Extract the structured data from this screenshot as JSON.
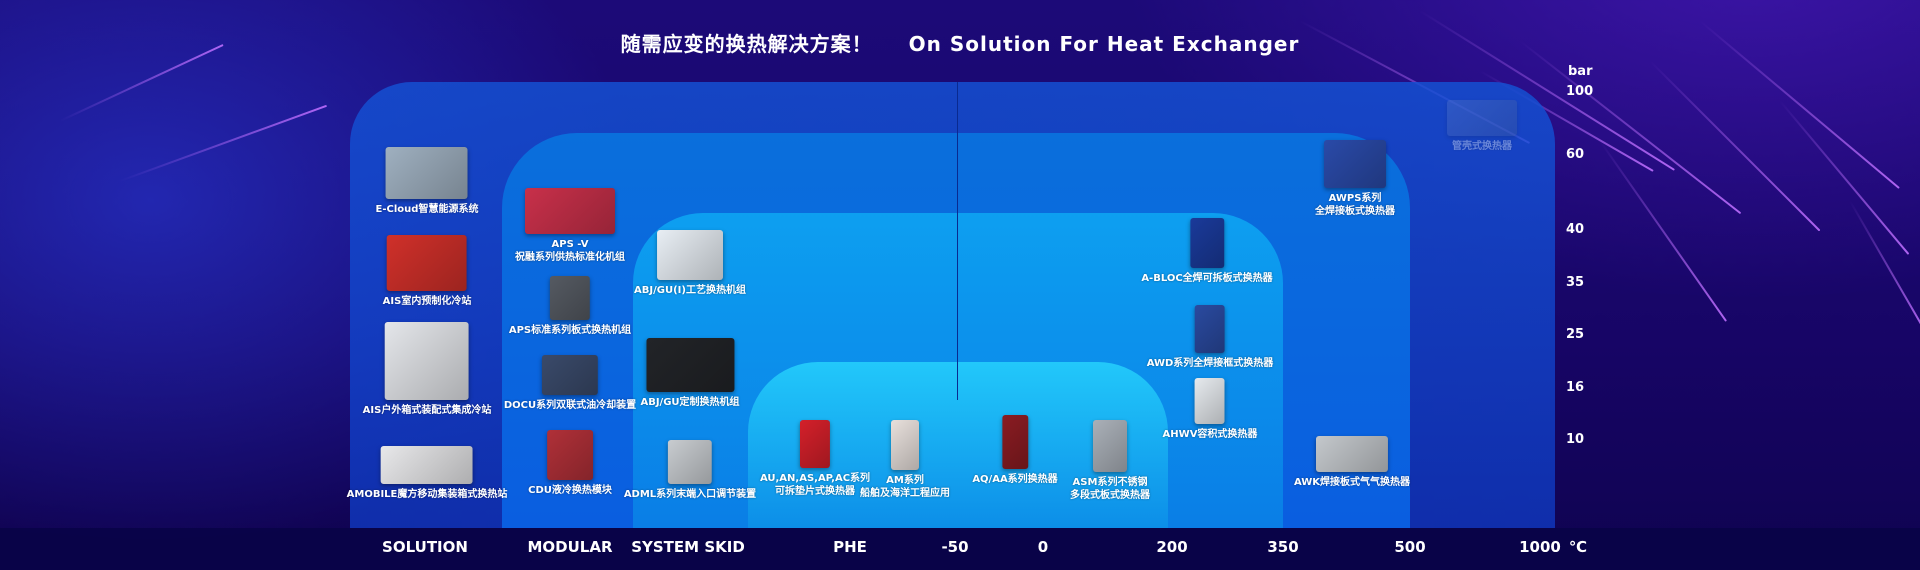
{
  "title": {
    "zh": "随需应变的换热解决方案！",
    "en": "On Solution For Heat Exchanger"
  },
  "axis": {
    "y_unit": "bar",
    "y_ticks": [
      "100",
      "60",
      "40",
      "35",
      "25",
      "16",
      "10"
    ],
    "x_unit": "℃",
    "x_ticks": [
      "-50",
      "0",
      "200",
      "350",
      "500",
      "1000"
    ]
  },
  "categories": [
    "SOLUTION",
    "MODULAR",
    "SYSTEM SKID",
    "PHE"
  ],
  "colors": {
    "background": "#170566",
    "panel_solution": "#1450d2",
    "panel_modular": "#0a6fdc",
    "panel_skid": "#0d9ff0",
    "panel_phe": "#22c8fa"
  },
  "products": [
    {
      "lines": [
        "E-Cloud智慧能源系统"
      ],
      "icon": "control-room-photo",
      "color": "#9fb0c0"
    },
    {
      "lines": [
        "AIS室内预制化冷站"
      ],
      "icon": "piping-diagram",
      "color": "#d0302a"
    },
    {
      "lines": [
        "AIS户外箱式装配式集成冷站"
      ],
      "icon": "outdoor-cabinet",
      "color": "#e4e6ea"
    },
    {
      "lines": [
        "AMOBILE魔方移动集装箱式换热站"
      ],
      "icon": "container",
      "color": "#e8e8ea"
    },
    {
      "lines": [
        "APS -V",
        "祝融系列供热标准化机组"
      ],
      "icon": "heating-skid",
      "color": "#c8304a"
    },
    {
      "lines": [
        "APS标准系列板式换热机组"
      ],
      "icon": "cabinet-unit",
      "color": "#555a62"
    },
    {
      "lines": [
        "DOCU系列双联式油冷却装置"
      ],
      "icon": "oil-cooler",
      "color": "#3a4a6a"
    },
    {
      "lines": [
        "CDU液冷换热模块"
      ],
      "icon": "cdu-cabinet",
      "color": "#b03038"
    },
    {
      "lines": [
        "ABJ/GU(I)工艺换热机组"
      ],
      "icon": "process-skid",
      "color": "#e8eef4"
    },
    {
      "lines": [
        "ABJ/GU定制换热机组"
      ],
      "icon": "custom-skid",
      "color": "#222428"
    },
    {
      "lines": [
        "ADML系列末端入口调节装置"
      ],
      "icon": "control-box",
      "color": "#c8ccd0"
    },
    {
      "lines": [
        "AU,AN,AS,AP,AC系列",
        "可拆垫片式换热器"
      ],
      "icon": "gasket-phe",
      "color": "#d4202a"
    },
    {
      "lines": [
        "AM系列",
        "船舶及海洋工程应用"
      ],
      "icon": "marine-phe",
      "color": "#e8e0dc"
    },
    {
      "lines": [
        "AQ/AA系列换热器"
      ],
      "icon": "frame-phe",
      "color": "#8a1c22"
    },
    {
      "lines": [
        "ASM系列不锈钢",
        "多段式板式换热器"
      ],
      "icon": "stainless-phe",
      "color": "#aab0b8"
    },
    {
      "lines": [
        "AHWV容积式换热器"
      ],
      "icon": "volumetric-tank",
      "color": "#e6eaee"
    },
    {
      "lines": [
        "AWK焊接板式气气换热器"
      ],
      "icon": "gas-exchanger",
      "color": "#c4c8cc"
    },
    {
      "lines": [
        "A-BLOC全焊可拆板式换热器"
      ],
      "icon": "bloc-exchanger",
      "color": "#1a3a9a"
    },
    {
      "lines": [
        "AWD系列全焊接框式换热器"
      ],
      "icon": "welded-frame",
      "color": "#2a4aa0"
    },
    {
      "lines": [
        "AWPS系列",
        "全焊接板式换热器"
      ],
      "icon": "welded-shell",
      "color": "#2a4aa8"
    },
    {
      "lines": [
        "管壳式换热器"
      ],
      "icon": "shell-tube",
      "color": "#5a7ac8"
    }
  ]
}
